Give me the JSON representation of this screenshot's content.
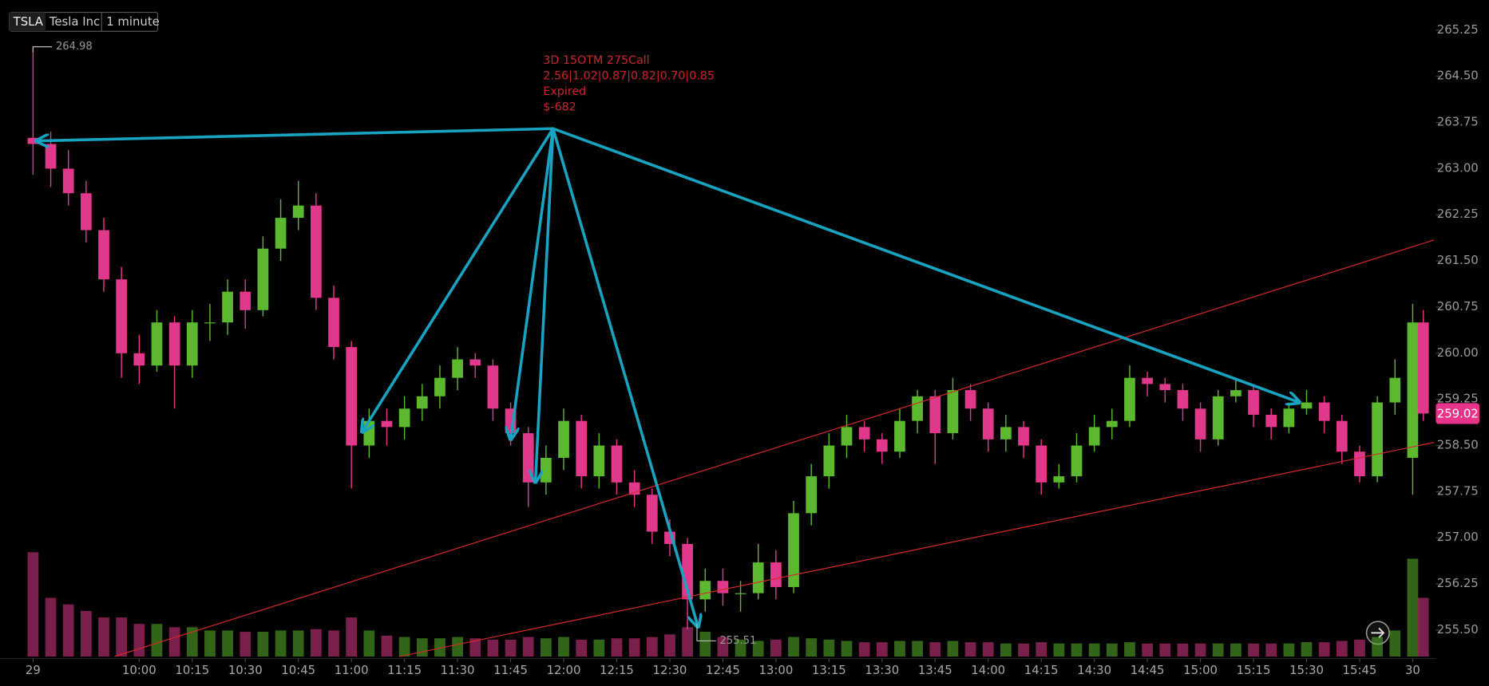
{
  "chart_data": {
    "type": "candlestick",
    "symbol": "TSLA",
    "company": "Tesla Inc",
    "interval": "1 minute",
    "up_color": "#5cb82e",
    "down_color": "#e0398c",
    "x": [
      0,
      5,
      10,
      15,
      20,
      25,
      30,
      35,
      40,
      45,
      50,
      55,
      60,
      65,
      70,
      75,
      80,
      85,
      90,
      95,
      100,
      105,
      110,
      115,
      120,
      125,
      130,
      135,
      140,
      145,
      150,
      155,
      160,
      165,
      170,
      175,
      180,
      185,
      190,
      195,
      200,
      205,
      210,
      215,
      220,
      225,
      230,
      235,
      240,
      245,
      250,
      255,
      260,
      265,
      270,
      275,
      280,
      285,
      290,
      295,
      300,
      305,
      310,
      315,
      320,
      325,
      330,
      335,
      340,
      345,
      350,
      355,
      360,
      365,
      370,
      375,
      380,
      385,
      390,
      393
    ],
    "open": [
      263.5,
      263.4,
      263.0,
      262.6,
      262.0,
      261.2,
      260.0,
      259.8,
      260.5,
      259.8,
      260.5,
      260.5,
      261.0,
      260.7,
      261.7,
      262.2,
      262.4,
      260.9,
      260.1,
      258.5,
      258.9,
      258.8,
      259.1,
      259.3,
      259.6,
      259.9,
      259.8,
      259.1,
      258.7,
      257.9,
      258.3,
      258.9,
      258.0,
      258.5,
      257.9,
      257.7,
      257.1,
      256.9,
      256.0,
      256.3,
      256.1,
      256.1,
      256.6,
      256.2,
      257.4,
      258.0,
      258.5,
      258.8,
      258.6,
      258.4,
      258.9,
      259.3,
      258.7,
      259.4,
      259.1,
      258.6,
      258.8,
      258.5,
      257.9,
      258.0,
      258.5,
      258.8,
      258.9,
      259.6,
      259.5,
      259.4,
      259.1,
      258.6,
      259.3,
      259.4,
      259.0,
      258.8,
      259.1,
      259.2,
      258.9,
      258.4,
      258.0,
      259.2,
      258.3,
      260.5
    ],
    "high": [
      264.98,
      263.6,
      263.3,
      262.8,
      262.2,
      261.4,
      260.3,
      260.7,
      260.6,
      260.7,
      260.8,
      261.2,
      261.2,
      261.9,
      262.5,
      262.8,
      262.6,
      261.1,
      260.2,
      259.1,
      259.1,
      259.3,
      259.5,
      259.8,
      260.1,
      260.0,
      259.9,
      259.2,
      258.8,
      258.5,
      259.1,
      259.0,
      258.7,
      258.6,
      258.1,
      257.8,
      257.3,
      257.0,
      256.5,
      256.5,
      256.3,
      256.9,
      256.8,
      257.6,
      258.2,
      258.7,
      259.0,
      258.9,
      258.7,
      259.1,
      259.4,
      259.4,
      259.6,
      259.5,
      259.2,
      259.0,
      258.9,
      258.6,
      258.2,
      258.7,
      259.0,
      259.1,
      259.8,
      259.7,
      259.6,
      259.5,
      259.2,
      259.4,
      259.6,
      259.5,
      259.1,
      259.2,
      259.4,
      259.3,
      259.0,
      258.5,
      259.3,
      259.9,
      260.8,
      260.7
    ],
    "low": [
      262.9,
      262.7,
      262.4,
      261.8,
      261.0,
      259.6,
      259.5,
      259.7,
      259.1,
      259.6,
      260.2,
      260.3,
      260.4,
      260.6,
      261.5,
      262.0,
      260.7,
      259.9,
      257.8,
      258.3,
      258.5,
      258.6,
      258.9,
      259.1,
      259.4,
      259.6,
      258.9,
      258.5,
      257.5,
      257.7,
      258.1,
      257.8,
      257.8,
      257.7,
      257.5,
      256.9,
      256.7,
      255.51,
      255.8,
      255.9,
      255.8,
      256.0,
      256.0,
      256.1,
      257.2,
      257.8,
      258.3,
      258.4,
      258.2,
      258.3,
      258.7,
      258.2,
      258.6,
      258.9,
      258.4,
      258.4,
      258.3,
      257.7,
      257.8,
      257.9,
      258.4,
      258.6,
      258.8,
      259.3,
      259.2,
      258.9,
      258.4,
      258.5,
      259.2,
      258.8,
      258.6,
      258.7,
      259.0,
      258.7,
      258.2,
      257.9,
      257.9,
      259.0,
      257.7,
      258.9
    ],
    "close": [
      263.4,
      263.0,
      262.6,
      262.0,
      261.2,
      260.0,
      259.8,
      260.5,
      259.8,
      260.5,
      260.5,
      261.0,
      260.7,
      261.7,
      262.2,
      262.4,
      260.9,
      260.1,
      258.5,
      258.9,
      258.8,
      259.1,
      259.3,
      259.6,
      259.9,
      259.8,
      259.1,
      258.7,
      257.9,
      258.3,
      258.9,
      258.0,
      258.5,
      257.9,
      257.7,
      257.1,
      256.9,
      256.0,
      256.3,
      256.1,
      256.1,
      256.6,
      256.2,
      257.4,
      258.0,
      258.5,
      258.8,
      258.6,
      258.4,
      258.9,
      259.3,
      258.7,
      259.4,
      259.1,
      258.6,
      258.8,
      258.5,
      257.9,
      258.0,
      258.5,
      258.8,
      258.9,
      259.6,
      259.5,
      259.4,
      259.1,
      258.6,
      259.3,
      259.4,
      259.0,
      258.8,
      259.1,
      259.2,
      258.9,
      258.4,
      258.0,
      259.2,
      259.6,
      260.5,
      259.02
    ],
    "volume": [
      160000,
      90000,
      80000,
      70000,
      60000,
      60000,
      50000,
      50000,
      45000,
      45000,
      40000,
      40000,
      38000,
      38000,
      40000,
      40000,
      42000,
      40000,
      60000,
      40000,
      32000,
      30000,
      28000,
      28000,
      30000,
      28000,
      26000,
      26000,
      30000,
      28000,
      30000,
      26000,
      26000,
      28000,
      28000,
      30000,
      34000,
      45000,
      38000,
      30000,
      26000,
      24000,
      26000,
      30000,
      28000,
      26000,
      24000,
      22000,
      22000,
      24000,
      24000,
      22000,
      24000,
      22000,
      22000,
      20000,
      20000,
      22000,
      20000,
      20000,
      20000,
      20000,
      22000,
      20000,
      20000,
      20000,
      20000,
      20000,
      20000,
      20000,
      20000,
      20000,
      22000,
      22000,
      24000,
      26000,
      30000,
      40000,
      150000,
      90000
    ],
    "xlim": [
      -8,
      396
    ],
    "ylim": [
      255.07,
      265.74
    ],
    "xticks": [
      {
        "value": 0,
        "label": "29"
      },
      {
        "value": 30,
        "label": "10:00"
      },
      {
        "value": 45,
        "label": "10:15"
      },
      {
        "value": 60,
        "label": "10:30"
      },
      {
        "value": 75,
        "label": "10:45"
      },
      {
        "value": 90,
        "label": "11:00"
      },
      {
        "value": 105,
        "label": "11:15"
      },
      {
        "value": 120,
        "label": "11:30"
      },
      {
        "value": 135,
        "label": "11:45"
      },
      {
        "value": 150,
        "label": "12:00"
      },
      {
        "value": 165,
        "label": "12:15"
      },
      {
        "value": 180,
        "label": "12:30"
      },
      {
        "value": 195,
        "label": "12:45"
      },
      {
        "value": 210,
        "label": "13:00"
      },
      {
        "value": 225,
        "label": "13:15"
      },
      {
        "value": 240,
        "label": "13:30"
      },
      {
        "value": 255,
        "label": "13:45"
      },
      {
        "value": 270,
        "label": "14:00"
      },
      {
        "value": 285,
        "label": "14:15"
      },
      {
        "value": 300,
        "label": "14:30"
      },
      {
        "value": 315,
        "label": "14:45"
      },
      {
        "value": 330,
        "label": "15:00"
      },
      {
        "value": 345,
        "label": "15:15"
      },
      {
        "value": 360,
        "label": "15:30"
      },
      {
        "value": 375,
        "label": "15:45"
      },
      {
        "value": 390,
        "label": "30"
      }
    ],
    "yticks": [
      {
        "value": 255.5,
        "label": "255.50"
      },
      256.25,
      {
        "value": 257,
        "label": "257.00"
      },
      257.75,
      {
        "value": 258.5,
        "label": "258.50"
      },
      259.25,
      {
        "value": 260,
        "label": "260.00"
      },
      260.75,
      {
        "value": 261.5,
        "label": "261.50"
      },
      262.25,
      {
        "value": 263,
        "label": "263.00"
      },
      263.75,
      {
        "value": 264.5,
        "label": "264.50"
      },
      265.25
    ],
    "annotation": {
      "lines": [
        "3D 15OTM 275Call",
        "2.56|1.02|0.87|0.82|0.70|0.85",
        "Expired",
        "$-682"
      ],
      "color": "#c8282c"
    },
    "arrows": {
      "color": "#1aa3c0",
      "origin": {
        "x": 147,
        "y": 263.65
      },
      "targets": [
        {
          "x": 1,
          "y": 263.45
        },
        {
          "x": 93,
          "y": 258.72
        },
        {
          "x": 135,
          "y": 258.6
        },
        {
          "x": 142,
          "y": 257.9
        },
        {
          "x": 188,
          "y": 255.55
        },
        {
          "x": 358,
          "y": 259.2
        }
      ]
    },
    "trendlines": {
      "color": "#d42a2a",
      "lines": [
        {
          "x": [
            23,
            396
          ],
          "y": [
            255.07,
            261.84
          ]
        },
        {
          "x": [
            103.5,
            396
          ],
          "y": [
            255.07,
            258.55
          ]
        }
      ]
    }
  }
}
